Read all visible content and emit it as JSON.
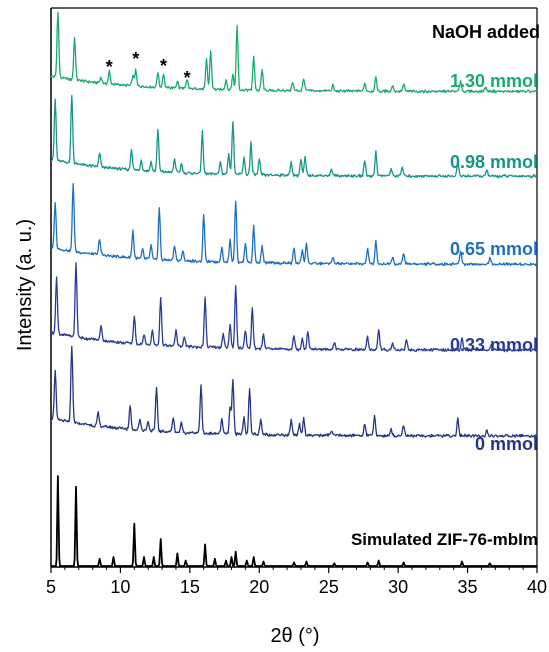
{
  "chart_data": {
    "type": "line",
    "xlabel": "2θ (°)",
    "ylabel": "Intensity (a. u.)",
    "xlim": [
      5,
      40
    ],
    "x_ticks": [
      5,
      10,
      15,
      20,
      25,
      30,
      35,
      40
    ],
    "x_tick_labels": [
      "5",
      "10",
      "15",
      "20",
      "25",
      "30",
      "35",
      "40"
    ],
    "y_ticks_shown": false,
    "legend_title": "NaOH added",
    "asterisk_marks": {
      "symbol": "*",
      "x": [
        9.2,
        11.1,
        13.1,
        14.8
      ]
    },
    "series": [
      {
        "name": "1.30 mmol",
        "color": "#1aaa6b",
        "peaks": [
          [
            5.5,
            0.95
          ],
          [
            6.7,
            0.6
          ],
          [
            8.6,
            0.08
          ],
          [
            9.2,
            0.18
          ],
          [
            10.9,
            0.14
          ],
          [
            11.1,
            0.22
          ],
          [
            12.7,
            0.22
          ],
          [
            13.1,
            0.2
          ],
          [
            14.1,
            0.1
          ],
          [
            14.8,
            0.12
          ],
          [
            16.2,
            0.42
          ],
          [
            16.5,
            0.55
          ],
          [
            17.6,
            0.14
          ],
          [
            18.1,
            0.22
          ],
          [
            18.4,
            0.92
          ],
          [
            19.6,
            0.48
          ],
          [
            20.2,
            0.3
          ],
          [
            22.4,
            0.12
          ],
          [
            23.2,
            0.18
          ],
          [
            25.3,
            0.08
          ],
          [
            27.6,
            0.12
          ],
          [
            28.4,
            0.2
          ],
          [
            29.6,
            0.08
          ],
          [
            30.4,
            0.1
          ],
          [
            34.5,
            0.15
          ],
          [
            36.3,
            0.06
          ]
        ]
      },
      {
        "name": "0.98 mmol",
        "color": "#17958a",
        "peaks": [
          [
            5.3,
            0.8
          ],
          [
            6.5,
            0.9
          ],
          [
            8.5,
            0.18
          ],
          [
            10.8,
            0.28
          ],
          [
            11.5,
            0.14
          ],
          [
            12.2,
            0.12
          ],
          [
            12.7,
            0.55
          ],
          [
            13.9,
            0.18
          ],
          [
            14.4,
            0.12
          ],
          [
            15.9,
            0.55
          ],
          [
            17.2,
            0.16
          ],
          [
            17.8,
            0.28
          ],
          [
            18.1,
            0.7
          ],
          [
            18.9,
            0.22
          ],
          [
            19.4,
            0.42
          ],
          [
            20.0,
            0.2
          ],
          [
            22.3,
            0.18
          ],
          [
            23.0,
            0.2
          ],
          [
            23.3,
            0.24
          ],
          [
            25.2,
            0.08
          ],
          [
            27.6,
            0.2
          ],
          [
            28.4,
            0.32
          ],
          [
            29.5,
            0.1
          ],
          [
            30.3,
            0.12
          ],
          [
            34.3,
            0.2
          ],
          [
            36.4,
            0.08
          ]
        ]
      },
      {
        "name": "0.65 mmol",
        "color": "#1e6fbf",
        "peaks": [
          [
            5.3,
            0.6
          ],
          [
            6.6,
            0.9
          ],
          [
            8.5,
            0.22
          ],
          [
            10.9,
            0.36
          ],
          [
            11.6,
            0.12
          ],
          [
            12.2,
            0.18
          ],
          [
            12.8,
            0.68
          ],
          [
            13.9,
            0.2
          ],
          [
            14.5,
            0.12
          ],
          [
            16.0,
            0.62
          ],
          [
            17.3,
            0.2
          ],
          [
            17.9,
            0.3
          ],
          [
            18.3,
            0.82
          ],
          [
            19.0,
            0.26
          ],
          [
            19.6,
            0.48
          ],
          [
            20.2,
            0.22
          ],
          [
            22.5,
            0.2
          ],
          [
            23.1,
            0.18
          ],
          [
            23.4,
            0.26
          ],
          [
            25.3,
            0.08
          ],
          [
            27.8,
            0.2
          ],
          [
            28.4,
            0.3
          ],
          [
            29.6,
            0.1
          ],
          [
            30.4,
            0.14
          ],
          [
            34.5,
            0.18
          ],
          [
            36.6,
            0.08
          ]
        ]
      },
      {
        "name": "0.33 mmol",
        "color": "#283b98",
        "peaks": [
          [
            5.4,
            0.72
          ],
          [
            6.8,
            0.92
          ],
          [
            8.6,
            0.18
          ],
          [
            11.0,
            0.35
          ],
          [
            11.7,
            0.12
          ],
          [
            12.3,
            0.18
          ],
          [
            12.9,
            0.6
          ],
          [
            14.0,
            0.2
          ],
          [
            14.6,
            0.12
          ],
          [
            16.1,
            0.62
          ],
          [
            17.4,
            0.18
          ],
          [
            17.9,
            0.28
          ],
          [
            18.3,
            0.78
          ],
          [
            19.0,
            0.22
          ],
          [
            19.5,
            0.52
          ],
          [
            20.3,
            0.18
          ],
          [
            22.5,
            0.16
          ],
          [
            23.1,
            0.14
          ],
          [
            23.5,
            0.22
          ],
          [
            25.4,
            0.08
          ],
          [
            27.8,
            0.16
          ],
          [
            28.6,
            0.26
          ],
          [
            29.6,
            0.08
          ],
          [
            30.6,
            0.12
          ],
          [
            34.6,
            0.14
          ],
          [
            36.7,
            0.06
          ]
        ]
      },
      {
        "name": "0 mmol",
        "color": "#273580",
        "peaks": [
          [
            5.3,
            0.6
          ],
          [
            6.5,
            0.95
          ],
          [
            8.4,
            0.16
          ],
          [
            10.7,
            0.3
          ],
          [
            11.4,
            0.14
          ],
          [
            12.0,
            0.12
          ],
          [
            12.6,
            0.55
          ],
          [
            13.8,
            0.18
          ],
          [
            14.4,
            0.12
          ],
          [
            15.8,
            0.6
          ],
          [
            17.3,
            0.18
          ],
          [
            17.9,
            0.32
          ],
          [
            18.1,
            0.68
          ],
          [
            18.9,
            0.22
          ],
          [
            19.3,
            0.58
          ],
          [
            20.1,
            0.18
          ],
          [
            22.3,
            0.18
          ],
          [
            22.9,
            0.14
          ],
          [
            23.2,
            0.22
          ],
          [
            25.2,
            0.06
          ],
          [
            27.6,
            0.16
          ],
          [
            28.3,
            0.26
          ],
          [
            29.5,
            0.08
          ],
          [
            30.4,
            0.14
          ],
          [
            34.3,
            0.22
          ],
          [
            36.4,
            0.06
          ]
        ]
      },
      {
        "name": "Simulated ZIF-76-mbIm",
        "color": "#000000",
        "peaks": [
          [
            5.5,
            1.0
          ],
          [
            6.8,
            0.88
          ],
          [
            8.5,
            0.08
          ],
          [
            9.5,
            0.1
          ],
          [
            11.0,
            0.47
          ],
          [
            11.7,
            0.1
          ],
          [
            12.4,
            0.1
          ],
          [
            12.9,
            0.3
          ],
          [
            14.1,
            0.14
          ],
          [
            14.7,
            0.06
          ],
          [
            16.1,
            0.24
          ],
          [
            16.8,
            0.08
          ],
          [
            17.6,
            0.06
          ],
          [
            18.0,
            0.1
          ],
          [
            18.3,
            0.16
          ],
          [
            19.1,
            0.06
          ],
          [
            19.6,
            0.1
          ],
          [
            20.3,
            0.05
          ],
          [
            22.5,
            0.04
          ],
          [
            23.4,
            0.05
          ],
          [
            25.4,
            0.03
          ],
          [
            27.8,
            0.04
          ],
          [
            28.6,
            0.06
          ],
          [
            30.4,
            0.04
          ],
          [
            34.6,
            0.05
          ],
          [
            36.6,
            0.03
          ]
        ]
      }
    ]
  }
}
